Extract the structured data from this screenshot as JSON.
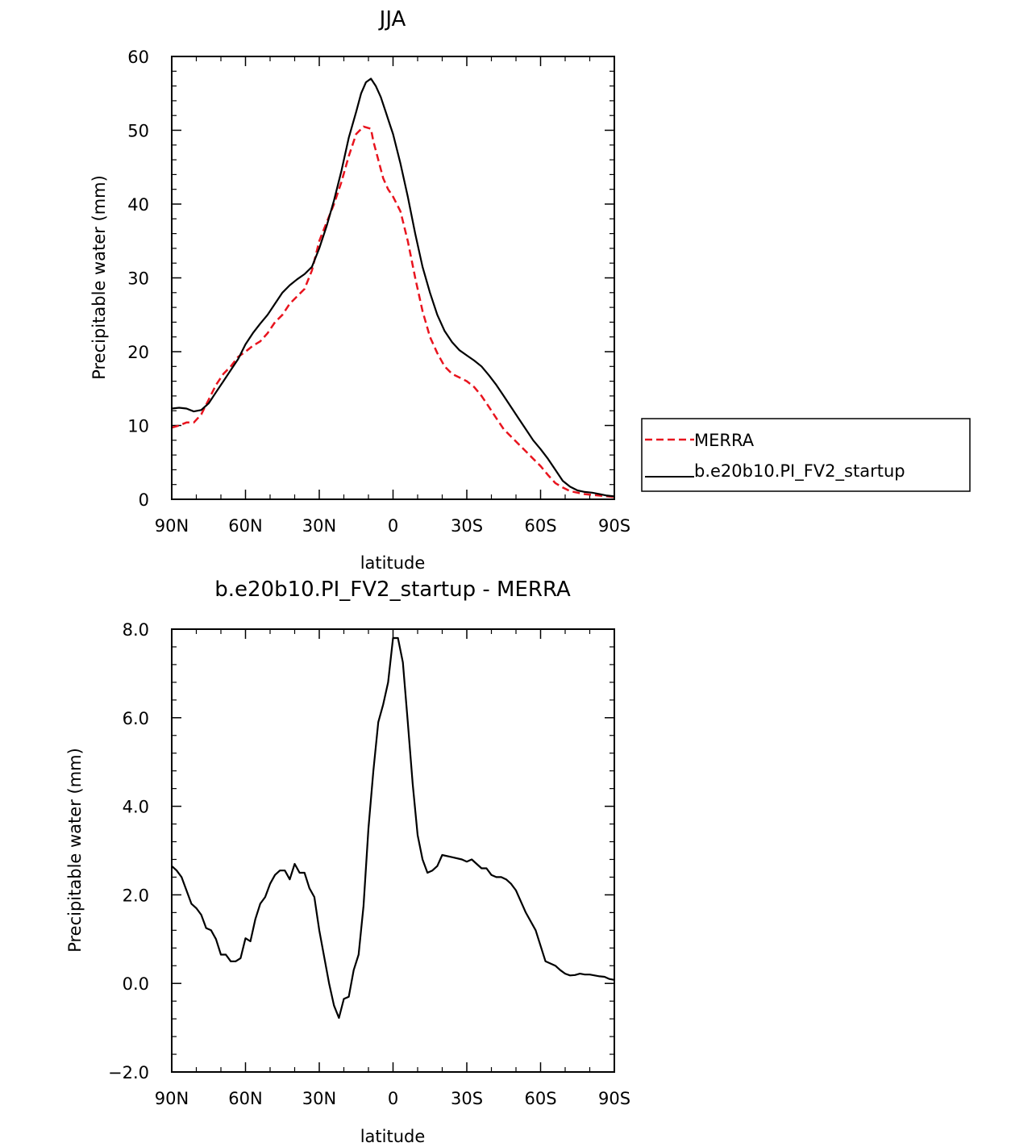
{
  "chart_data": [
    {
      "type": "line",
      "title": "JJA",
      "xlabel": "latitude",
      "ylabel": "Precipitable water (mm)",
      "xlim": [
        90,
        -90
      ],
      "ylim": [
        0,
        60
      ],
      "xticks": [
        90,
        60,
        30,
        0,
        -30,
        -60,
        -90
      ],
      "xtick_labels": [
        "90N",
        "60N",
        "30N",
        "0",
        "30S",
        "60S",
        "90S"
      ],
      "yticks": [
        0,
        10,
        20,
        30,
        40,
        50,
        60
      ],
      "ytick_labels": [
        "0",
        "10",
        "20",
        "30",
        "40",
        "50",
        "60"
      ],
      "legend": {
        "placement": "right",
        "entries": [
          "MERRA",
          "b.e20b10.PI_FV2_startup"
        ]
      },
      "series": [
        {
          "name": "MERRA",
          "color": "#e8141e",
          "dash": "dashed",
          "x": [
            90,
            87,
            84,
            81,
            78,
            75,
            72,
            69,
            66,
            63,
            60,
            57,
            54,
            51,
            48,
            45,
            42,
            39,
            36,
            33,
            30,
            27,
            24,
            21,
            18,
            15,
            12,
            9,
            8,
            6,
            4,
            2,
            0,
            -3,
            -6,
            -9,
            -12,
            -15,
            -18,
            -21,
            -24,
            -27,
            -30,
            -33,
            -36,
            -39,
            -42,
            -45,
            -48,
            -51,
            -54,
            -57,
            -60,
            -63,
            -66,
            -69,
            -72,
            -75,
            -78,
            -81,
            -84,
            -87,
            -90
          ],
          "y": [
            9.7,
            10.0,
            10.4,
            10.4,
            11.5,
            13.5,
            15.5,
            17.0,
            18.0,
            19.3,
            20.0,
            20.8,
            21.4,
            22.5,
            24.0,
            25.0,
            26.5,
            27.5,
            28.5,
            31.0,
            35.0,
            37.5,
            40.0,
            43.0,
            46.5,
            49.5,
            50.5,
            50.2,
            48.5,
            46.0,
            43.5,
            42.0,
            41.0,
            39.0,
            35.0,
            30.0,
            25.5,
            22.0,
            19.8,
            18.0,
            17.0,
            16.5,
            16.0,
            15.2,
            14.0,
            12.5,
            11.0,
            9.5,
            8.5,
            7.5,
            6.5,
            5.5,
            4.5,
            3.3,
            2.2,
            1.6,
            1.1,
            0.9,
            0.7,
            0.6,
            0.5,
            0.4,
            0.3
          ]
        },
        {
          "name": "b.e20b10.PI_FV2_startup",
          "color": "#000000",
          "dash": "solid",
          "x": [
            90,
            87,
            84,
            81,
            78,
            75,
            72,
            69,
            66,
            63,
            60,
            57,
            54,
            51,
            48,
            45,
            42,
            39,
            36,
            33,
            30,
            27,
            24,
            21,
            18,
            15,
            13,
            11,
            9,
            7,
            5,
            3,
            1,
            0,
            -3,
            -6,
            -9,
            -12,
            -15,
            -18,
            -21,
            -24,
            -27,
            -30,
            -33,
            -36,
            -39,
            -42,
            -45,
            -48,
            -51,
            -54,
            -57,
            -60,
            -63,
            -66,
            -69,
            -72,
            -75,
            -78,
            -81,
            -84,
            -87,
            -90
          ],
          "y": [
            12.3,
            12.4,
            12.3,
            11.9,
            12.1,
            13.0,
            14.5,
            16.0,
            17.5,
            19.0,
            21.0,
            22.5,
            23.8,
            25.0,
            26.5,
            28.0,
            29.0,
            29.8,
            30.5,
            31.5,
            34.0,
            37.0,
            40.5,
            44.5,
            49.0,
            52.5,
            55.0,
            56.5,
            57.0,
            56.0,
            54.5,
            52.5,
            50.5,
            49.5,
            45.5,
            41.0,
            36.0,
            31.5,
            28.0,
            25.0,
            22.8,
            21.3,
            20.2,
            19.5,
            18.8,
            18.0,
            16.8,
            15.5,
            14.0,
            12.5,
            11.0,
            9.5,
            8.0,
            6.8,
            5.5,
            4.0,
            2.5,
            1.7,
            1.2,
            1.0,
            0.9,
            0.7,
            0.5,
            0.4
          ]
        }
      ]
    },
    {
      "type": "line",
      "title": "b.e20b10.PI_FV2_startup - MERRA",
      "xlabel": "latitude",
      "ylabel": "Precipitable water (mm)",
      "xlim": [
        90,
        -90
      ],
      "ylim": [
        -2,
        8
      ],
      "xticks": [
        90,
        60,
        30,
        0,
        -30,
        -60,
        -90
      ],
      "xtick_labels": [
        "90N",
        "60N",
        "30N",
        "0",
        "30S",
        "60S",
        "90S"
      ],
      "yticks": [
        -2,
        0,
        2,
        4,
        6,
        8
      ],
      "ytick_labels": [
        "−2.0",
        "0.0",
        "2.0",
        "4.0",
        "6.0",
        "8.0"
      ],
      "series": [
        {
          "color": "#000000",
          "dash": "solid",
          "x": [
            90,
            88,
            86,
            84,
            82,
            80,
            78,
            76,
            74,
            72,
            70,
            68,
            66,
            64,
            62,
            60,
            58,
            56,
            54,
            52,
            50,
            48,
            46,
            44,
            42,
            40,
            38,
            36,
            34,
            32,
            30,
            28,
            26,
            24,
            22,
            20,
            18,
            16,
            14,
            12,
            10,
            8,
            6,
            4,
            2,
            0,
            -2,
            -4,
            -6,
            -8,
            -10,
            -12,
            -14,
            -16,
            -18,
            -20,
            -24,
            -28,
            -30,
            -32,
            -34,
            -36,
            -38,
            -40,
            -42,
            -44,
            -46,
            -48,
            -50,
            -54,
            -58,
            -62,
            -66,
            -68,
            -70,
            -72,
            -74,
            -76,
            -78,
            -80,
            -82,
            -84,
            -86,
            -88,
            -90
          ],
          "y": [
            2.65,
            2.55,
            2.4,
            2.1,
            1.8,
            1.7,
            1.55,
            1.25,
            1.2,
            1.0,
            0.65,
            0.65,
            0.5,
            0.5,
            0.57,
            1.02,
            0.95,
            1.45,
            1.8,
            1.95,
            2.25,
            2.45,
            2.55,
            2.55,
            2.35,
            2.7,
            2.5,
            2.5,
            2.15,
            1.95,
            1.2,
            0.6,
            0.0,
            -0.5,
            -0.78,
            -0.35,
            -0.3,
            0.3,
            0.65,
            1.75,
            3.5,
            4.8,
            5.9,
            6.3,
            6.8,
            7.8,
            7.8,
            7.25,
            5.9,
            4.5,
            3.35,
            2.8,
            2.5,
            2.55,
            2.65,
            2.9,
            2.85,
            2.8,
            2.75,
            2.8,
            2.7,
            2.6,
            2.6,
            2.45,
            2.4,
            2.4,
            2.35,
            2.25,
            2.1,
            1.6,
            1.2,
            0.5,
            0.4,
            0.3,
            0.22,
            0.18,
            0.19,
            0.22,
            0.2,
            0.2,
            0.18,
            0.16,
            0.15,
            0.1,
            0.08
          ]
        }
      ]
    }
  ]
}
